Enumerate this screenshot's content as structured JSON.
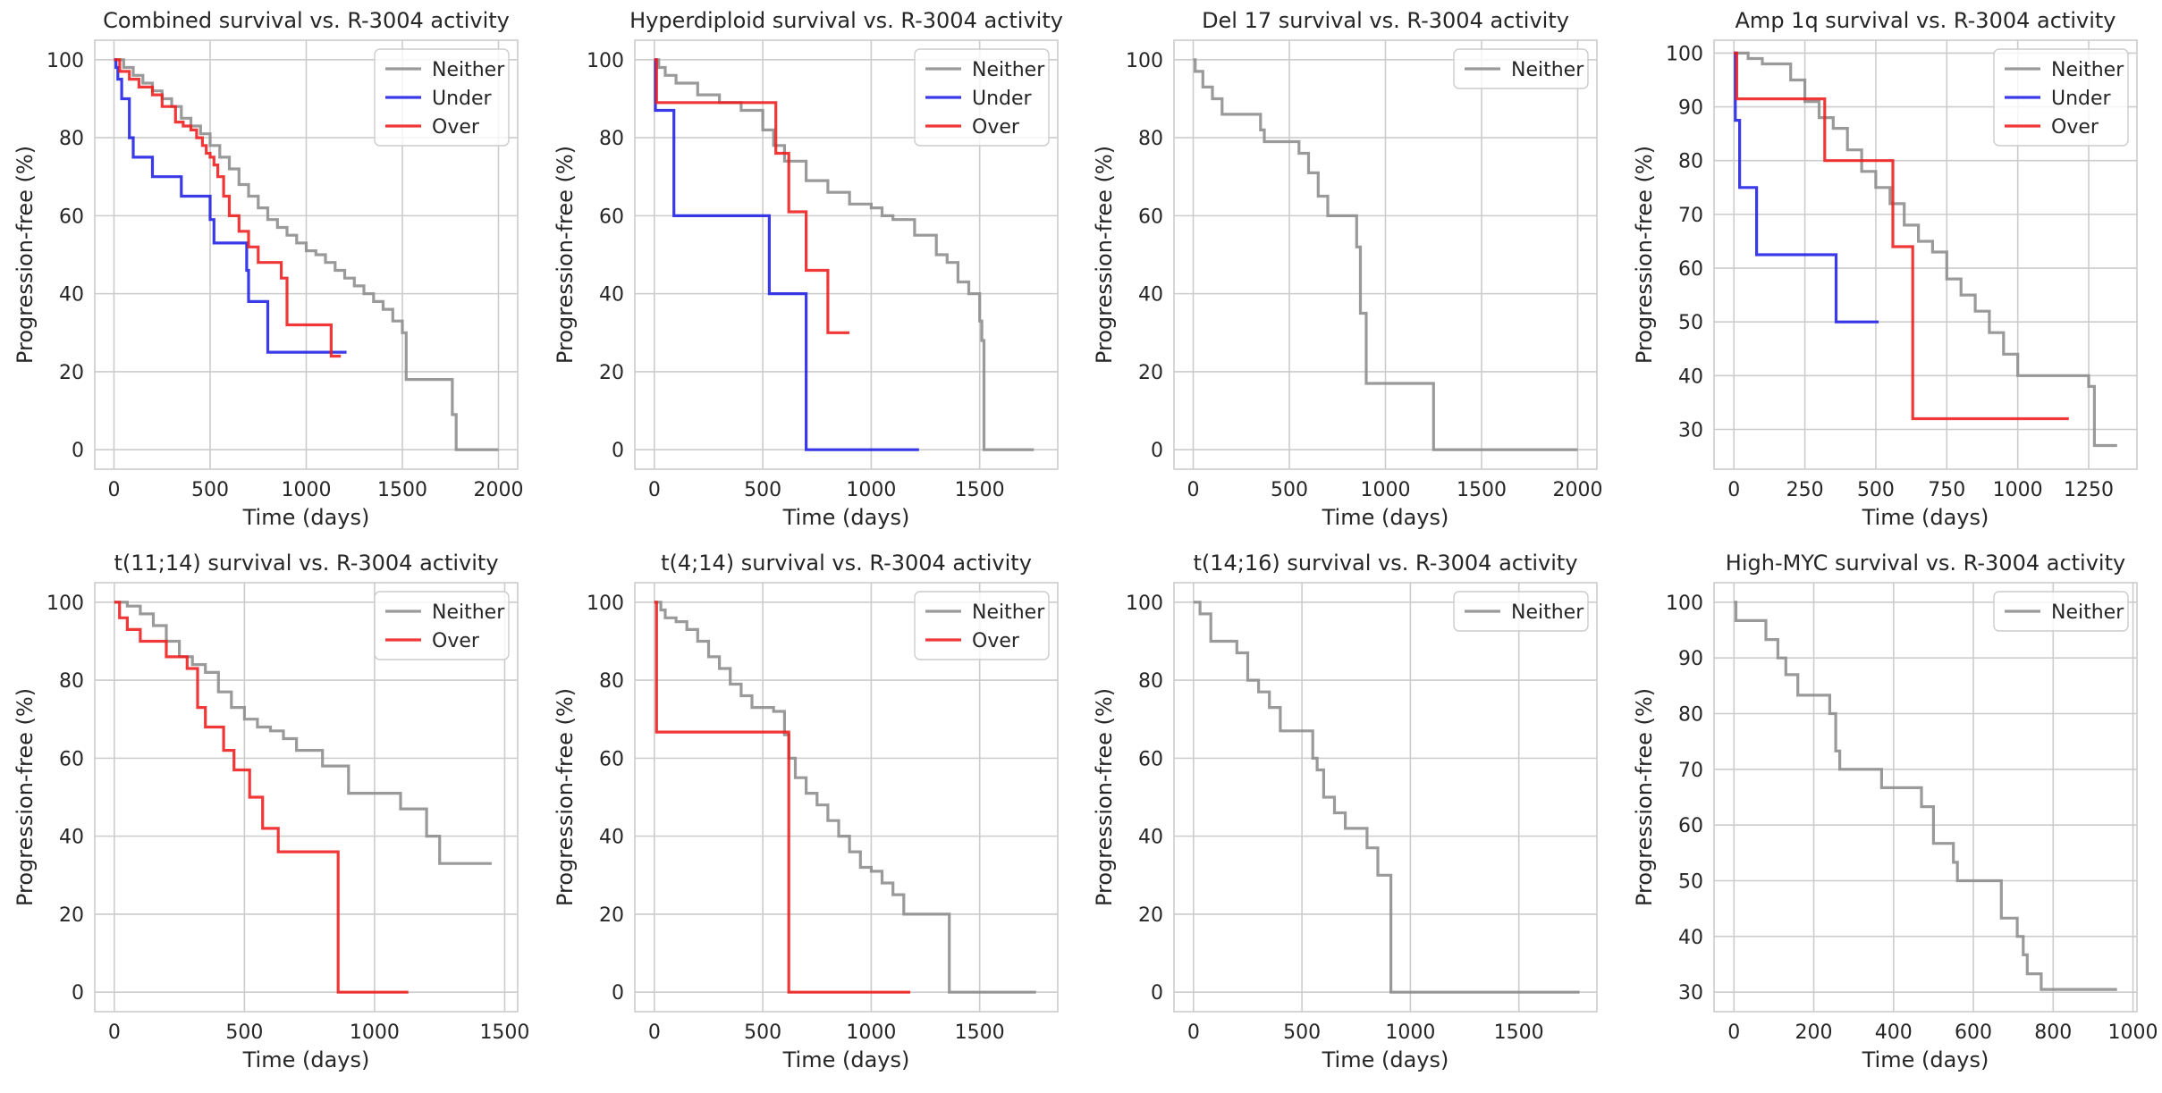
{
  "colors": {
    "Neither": "#8c8c8c",
    "Under": "#1f1fe6",
    "Over": "#ee1c1c"
  },
  "chart_data": [
    {
      "type": "line",
      "title": "Combined survival vs. R-3004 activity",
      "xlabel": "Time (days)",
      "ylabel": "Progression-free (%)",
      "xlim": [
        -100,
        2100
      ],
      "ylim": [
        -5,
        105
      ],
      "xticks": [
        0,
        500,
        1000,
        1500,
        2000
      ],
      "yticks": [
        0,
        20,
        40,
        60,
        80,
        100
      ],
      "grid": true,
      "legend": "top-right",
      "series": [
        {
          "name": "Neither",
          "x": [
            0,
            50,
            100,
            150,
            200,
            250,
            300,
            350,
            400,
            450,
            500,
            550,
            600,
            650,
            700,
            750,
            800,
            850,
            900,
            950,
            1000,
            1050,
            1100,
            1150,
            1200,
            1250,
            1300,
            1350,
            1400,
            1450,
            1500,
            1520,
            1600,
            1700,
            1760,
            1780,
            2000
          ],
          "y": [
            100,
            98,
            96,
            94,
            92,
            90,
            88,
            85,
            83,
            81,
            78,
            75,
            72,
            68,
            65,
            62,
            59,
            57,
            55,
            53,
            51,
            50,
            48,
            46,
            44,
            42,
            40,
            38,
            36,
            33,
            30,
            18,
            18,
            18,
            9,
            0,
            0
          ]
        },
        {
          "name": "Under",
          "x": [
            0,
            10,
            20,
            40,
            60,
            80,
            100,
            150,
            200,
            250,
            300,
            350,
            400,
            450,
            500,
            520,
            550,
            650,
            690,
            700,
            720,
            800,
            1000,
            1210
          ],
          "y": [
            100,
            98,
            95,
            90,
            90,
            80,
            75,
            75,
            70,
            70,
            70,
            65,
            65,
            65,
            59,
            53,
            53,
            53,
            46,
            38,
            38,
            25,
            25,
            25
          ]
        },
        {
          "name": "Over",
          "x": [
            0,
            30,
            80,
            130,
            200,
            250,
            320,
            360,
            400,
            430,
            460,
            480,
            500,
            520,
            540,
            570,
            600,
            650,
            700,
            750,
            800,
            870,
            900,
            1000,
            1130,
            1180
          ],
          "y": [
            100,
            97,
            95,
            93,
            91,
            88,
            84,
            83,
            82,
            80,
            78,
            76,
            75,
            73,
            70,
            65,
            60,
            56,
            52,
            48,
            48,
            44,
            32,
            32,
            24,
            24
          ]
        }
      ]
    },
    {
      "type": "line",
      "title": "Hyperdiploid survival vs. R-3004 activity",
      "xlabel": "Time (days)",
      "ylabel": "Progression-free (%)",
      "xlim": [
        -90,
        1860
      ],
      "ylim": [
        -5,
        105
      ],
      "xticks": [
        0,
        500,
        1000,
        1500
      ],
      "yticks": [
        0,
        20,
        40,
        60,
        80,
        100
      ],
      "grid": true,
      "legend": "top-right",
      "series": [
        {
          "name": "Neither",
          "x": [
            0,
            20,
            50,
            100,
            200,
            300,
            400,
            500,
            550,
            600,
            700,
            800,
            900,
            1000,
            1050,
            1100,
            1200,
            1300,
            1350,
            1400,
            1450,
            1500,
            1510,
            1520,
            1750
          ],
          "y": [
            100,
            98,
            96,
            94,
            91,
            89,
            87,
            82,
            78,
            74,
            69,
            66,
            63,
            62,
            60,
            59,
            55,
            50,
            48,
            43,
            40,
            33,
            28,
            0,
            0
          ]
        },
        {
          "name": "Under",
          "x": [
            0,
            5,
            70,
            90,
            530,
            700,
            1220
          ],
          "y": [
            100,
            87,
            87,
            60,
            40,
            0,
            0
          ]
        },
        {
          "name": "Over",
          "x": [
            0,
            10,
            500,
            560,
            600,
            620,
            700,
            770,
            800,
            900
          ],
          "y": [
            100,
            89,
            89,
            76,
            76,
            61,
            46,
            46,
            30,
            30
          ]
        }
      ]
    },
    {
      "type": "line",
      "title": "Del 17 survival vs. R-3004 activity",
      "xlabel": "Time (days)",
      "ylabel": "Progression-free (%)",
      "xlim": [
        -100,
        2100
      ],
      "ylim": [
        -5,
        105
      ],
      "xticks": [
        0,
        500,
        1000,
        1500,
        2000
      ],
      "yticks": [
        0,
        20,
        40,
        60,
        80,
        100
      ],
      "grid": true,
      "legend": "top-right",
      "series": [
        {
          "name": "Neither",
          "x": [
            0,
            10,
            50,
            100,
            150,
            350,
            370,
            550,
            600,
            650,
            700,
            850,
            870,
            900,
            1250,
            2000
          ],
          "y": [
            100,
            97,
            93,
            90,
            86,
            82,
            79,
            76,
            71,
            65,
            60,
            52,
            35,
            17,
            0,
            0
          ]
        }
      ]
    },
    {
      "type": "line",
      "title": "Amp 1q survival vs. R-3004 activity",
      "xlabel": "Time (days)",
      "ylabel": "Progression-free (%)",
      "xlim": [
        -70,
        1420
      ],
      "ylim": [
        22.6,
        102.4
      ],
      "xticks": [
        0,
        250,
        500,
        750,
        1000,
        1250
      ],
      "yticks": [
        30,
        40,
        50,
        60,
        70,
        80,
        90,
        100
      ],
      "grid": true,
      "legend": "top-right",
      "series": [
        {
          "name": "Neither",
          "x": [
            0,
            50,
            100,
            200,
            250,
            300,
            350,
            400,
            450,
            500,
            550,
            600,
            650,
            700,
            750,
            800,
            850,
            900,
            950,
            1000,
            1150,
            1250,
            1270,
            1350
          ],
          "y": [
            100,
            99,
            98,
            95,
            91,
            88,
            86,
            82,
            78,
            75,
            72,
            68,
            65,
            63,
            58,
            55,
            52,
            48,
            44,
            40,
            40,
            38,
            27,
            27
          ]
        },
        {
          "name": "Under",
          "x": [
            0,
            5,
            20,
            80,
            360,
            510
          ],
          "y": [
            100,
            87.5,
            75,
            62.5,
            50,
            50
          ]
        },
        {
          "name": "Over",
          "x": [
            0,
            10,
            320,
            560,
            630,
            1180
          ],
          "y": [
            100,
            91.5,
            80,
            64,
            32,
            32
          ]
        }
      ]
    },
    {
      "type": "line",
      "title": "t(11;14) survival vs. R-3004 activity",
      "xlabel": "Time (days)",
      "ylabel": "Progression-free (%)",
      "xlim": [
        -75,
        1550
      ],
      "ylim": [
        -5,
        105
      ],
      "xticks": [
        0,
        500,
        1000,
        1500
      ],
      "yticks": [
        0,
        20,
        40,
        60,
        80,
        100
      ],
      "grid": true,
      "legend": "top-right",
      "series": [
        {
          "name": "Neither",
          "x": [
            0,
            50,
            100,
            150,
            200,
            250,
            300,
            350,
            400,
            450,
            500,
            550,
            600,
            650,
            700,
            800,
            900,
            1000,
            1100,
            1200,
            1250,
            1450
          ],
          "y": [
            100,
            99,
            97,
            94,
            90,
            86,
            84,
            82,
            77,
            73,
            70,
            68,
            67,
            65,
            62,
            58,
            51,
            51,
            47,
            40,
            33,
            33
          ]
        },
        {
          "name": "Over",
          "x": [
            0,
            20,
            50,
            100,
            200,
            280,
            320,
            350,
            420,
            460,
            520,
            570,
            630,
            860,
            1130
          ],
          "y": [
            100,
            96,
            93,
            90,
            86,
            83,
            73,
            68,
            62,
            57,
            50,
            42,
            36,
            0,
            0
          ]
        }
      ]
    },
    {
      "type": "line",
      "title": "t(4;14) survival vs. R-3004 activity",
      "xlabel": "Time (days)",
      "ylabel": "Progression-free (%)",
      "xlim": [
        -90,
        1860
      ],
      "ylim": [
        -5,
        105
      ],
      "xticks": [
        0,
        500,
        1000,
        1500
      ],
      "yticks": [
        0,
        20,
        40,
        60,
        80,
        100
      ],
      "grid": true,
      "legend": "top-right",
      "series": [
        {
          "name": "Neither",
          "x": [
            0,
            30,
            50,
            100,
            150,
            200,
            250,
            300,
            350,
            400,
            450,
            500,
            550,
            600,
            620,
            650,
            700,
            750,
            800,
            850,
            900,
            950,
            1000,
            1050,
            1100,
            1150,
            1350,
            1360,
            1760
          ],
          "y": [
            100,
            98,
            96,
            95,
            93,
            90,
            86,
            83,
            79,
            76,
            73,
            73,
            72,
            66,
            60,
            55,
            51,
            48,
            44,
            40,
            36,
            32,
            31,
            28,
            25,
            20,
            20,
            0,
            0
          ]
        },
        {
          "name": "Over",
          "x": [
            0,
            10,
            610,
            620,
            1180
          ],
          "y": [
            100,
            66.7,
            66.7,
            0,
            0
          ]
        }
      ]
    },
    {
      "type": "line",
      "title": "t(14;16) survival vs. R-3004 activity",
      "xlabel": "Time (days)",
      "ylabel": "Progression-free (%)",
      "xlim": [
        -90,
        1860
      ],
      "ylim": [
        -5,
        105
      ],
      "xticks": [
        0,
        500,
        1000,
        1500
      ],
      "yticks": [
        0,
        20,
        40,
        60,
        80,
        100
      ],
      "grid": true,
      "legend": "top-right",
      "series": [
        {
          "name": "Neither",
          "x": [
            0,
            30,
            80,
            200,
            250,
            300,
            350,
            400,
            550,
            570,
            600,
            650,
            700,
            800,
            850,
            900,
            910,
            1780
          ],
          "y": [
            100,
            97,
            90,
            87,
            80,
            77,
            73,
            67,
            60,
            57,
            50,
            46,
            42,
            37,
            30,
            30,
            0,
            0
          ]
        }
      ]
    },
    {
      "type": "line",
      "title": "High-MYC survival vs. R-3004 activity",
      "xlabel": "Time (days)",
      "ylabel": "Progression-free (%)",
      "xlim": [
        -50,
        1010
      ],
      "ylim": [
        26.5,
        103.5
      ],
      "xticks": [
        0,
        200,
        400,
        600,
        800,
        1000
      ],
      "yticks": [
        30,
        40,
        50,
        60,
        70,
        80,
        90,
        100
      ],
      "grid": true,
      "legend": "top-right",
      "series": [
        {
          "name": "Neither",
          "x": [
            0,
            5,
            80,
            110,
            130,
            160,
            240,
            255,
            265,
            370,
            470,
            500,
            550,
            560,
            670,
            710,
            725,
            735,
            770,
            960
          ],
          "y": [
            100,
            96.7,
            93.3,
            90,
            87,
            83.3,
            80,
            73.3,
            70,
            66.7,
            63.3,
            56.7,
            53.3,
            50,
            43.3,
            40,
            36.7,
            33.3,
            30.5,
            30.5
          ]
        }
      ]
    }
  ]
}
